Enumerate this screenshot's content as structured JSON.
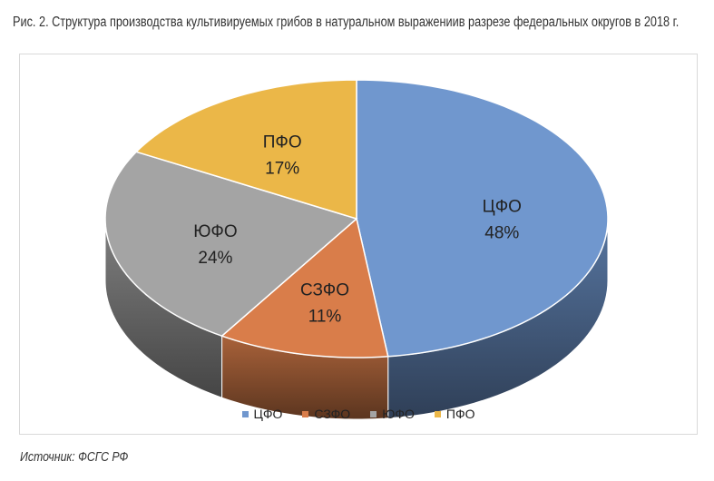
{
  "title": "Рис. 2. Структура производства культивируемых грибов в натуральном выражениив разрезе федеральных округов в 2018 г.",
  "source": "Источник: ФСГС РФ",
  "chart_data": {
    "type": "pie",
    "style": "3d",
    "legend_position": "bottom",
    "series": [
      {
        "label": "ЦФО",
        "value": 48,
        "value_label": "48%",
        "color": "#7097CE"
      },
      {
        "label": "СЗФО",
        "value": 11,
        "value_label": "11%",
        "color": "#D97D4A"
      },
      {
        "label": "ЮФО",
        "value": 24,
        "value_label": "24%",
        "color": "#A4A4A4"
      },
      {
        "label": "ПФО",
        "value": 17,
        "value_label": "17%",
        "color": "#EBB748"
      }
    ]
  }
}
